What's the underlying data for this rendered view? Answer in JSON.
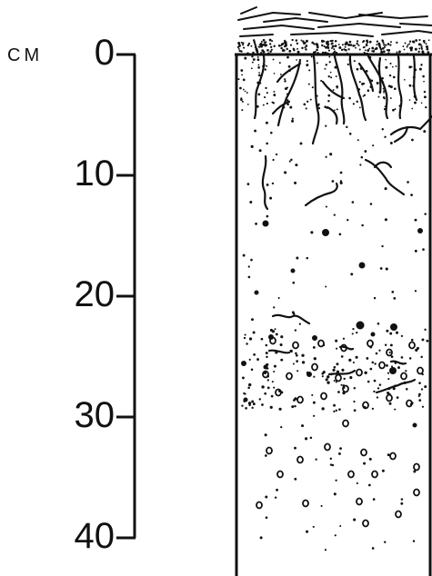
{
  "scale": {
    "unit": "CM",
    "ticks": [
      {
        "label": "0",
        "depth": 0
      },
      {
        "label": "10",
        "depth": 10
      },
      {
        "label": "20",
        "depth": 20
      },
      {
        "label": "30",
        "depth": 30
      },
      {
        "label": "40",
        "depth": 40
      }
    ],
    "max_depth": 40
  },
  "colors": {
    "ink": "#111111",
    "background": "#ffffff"
  }
}
